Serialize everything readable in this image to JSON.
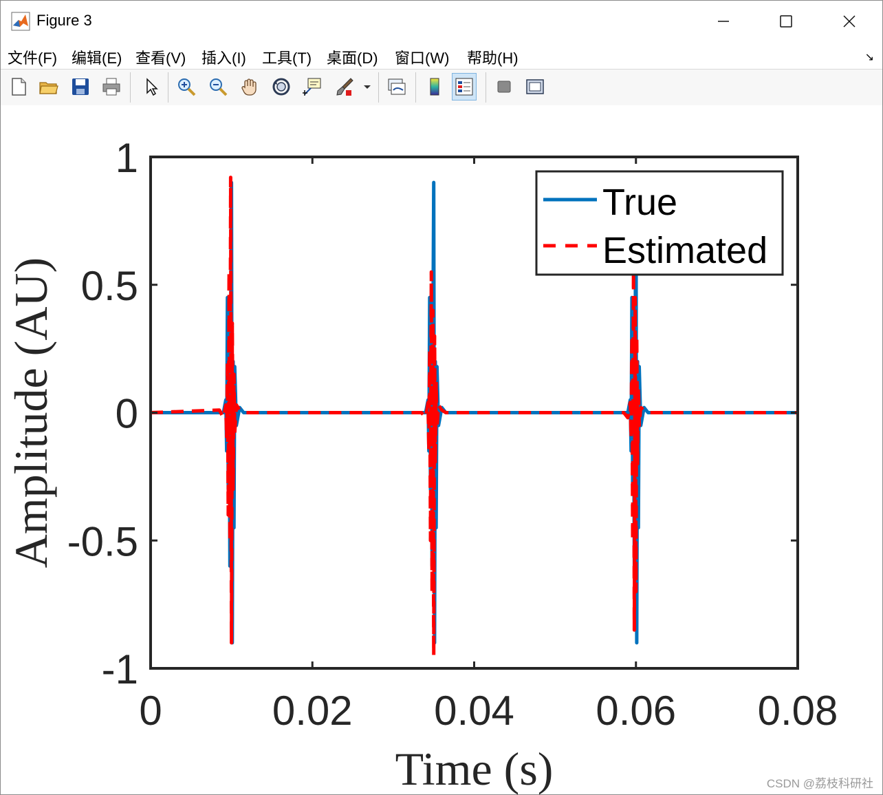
{
  "window": {
    "title": "Figure 3",
    "controls": [
      "minimize",
      "maximize",
      "close"
    ]
  },
  "menu": {
    "items": [
      "文件(F)",
      "编辑(E)",
      "查看(V)",
      "插入(I)",
      "工具(T)",
      "桌面(D)",
      "窗口(W)",
      "帮助(H)"
    ]
  },
  "toolbar": {
    "buttons": [
      {
        "name": "new-figure-icon"
      },
      {
        "name": "open-file-icon"
      },
      {
        "name": "save-icon"
      },
      {
        "name": "print-icon"
      },
      {
        "name": "pointer-icon"
      },
      {
        "name": "zoom-in-icon"
      },
      {
        "name": "zoom-out-icon"
      },
      {
        "name": "pan-hand-icon"
      },
      {
        "name": "rotate-3d-icon"
      },
      {
        "name": "data-cursor-icon"
      },
      {
        "name": "brush-icon"
      },
      {
        "name": "link-plot-icon"
      },
      {
        "name": "colorbar-icon"
      },
      {
        "name": "legend-icon",
        "active": true
      },
      {
        "name": "hide-plot-tools-icon"
      },
      {
        "name": "show-plot-tools-icon"
      }
    ]
  },
  "chart_data": {
    "type": "line",
    "title": "",
    "xlabel": "Time (s)",
    "ylabel": "Amplitude (AU)",
    "xlim": [
      0,
      0.08
    ],
    "ylim": [
      -1,
      1
    ],
    "xticks": [
      "0",
      "0.02",
      "0.04",
      "0.06",
      "0.08"
    ],
    "xtick_values": [
      0,
      0.02,
      0.04,
      0.06,
      0.08
    ],
    "yticks": [
      "1",
      "0.5",
      "0",
      "-0.5",
      "-1"
    ],
    "ytick_values": [
      1,
      0.5,
      0,
      -0.5,
      -1
    ],
    "grid": false,
    "legend_position": "top-right",
    "series": [
      {
        "name": "True",
        "color": "#0072BD",
        "style": "solid",
        "x": [
          0,
          0.009,
          0.0093,
          0.0094,
          0.0095,
          0.0096,
          0.0097,
          0.0098,
          0.0099,
          0.01,
          0.0101,
          0.0102,
          0.0103,
          0.0104,
          0.0106,
          0.011,
          0.0115,
          0.034,
          0.0343,
          0.0344,
          0.0345,
          0.0346,
          0.0347,
          0.0348,
          0.0349,
          0.035,
          0.0351,
          0.0352,
          0.0353,
          0.0354,
          0.0356,
          0.036,
          0.0365,
          0.059,
          0.0593,
          0.0594,
          0.0595,
          0.0596,
          0.0597,
          0.0598,
          0.0599,
          0.06,
          0.0601,
          0.0602,
          0.0603,
          0.0604,
          0.0606,
          0.061,
          0.0615,
          0.08
        ],
        "y": [
          0,
          0,
          0.05,
          -0.15,
          0.45,
          -0.3,
          0.2,
          -0.6,
          0.3,
          0.9,
          -0.9,
          0.2,
          -0.45,
          0.18,
          -0.05,
          0.02,
          0,
          0,
          0.05,
          -0.15,
          0.45,
          -0.3,
          0.2,
          -0.6,
          0.3,
          0.9,
          -0.9,
          0.2,
          -0.45,
          0.18,
          -0.05,
          0.02,
          0,
          0,
          0.05,
          -0.15,
          0.45,
          -0.3,
          0.2,
          -0.6,
          0.3,
          0.9,
          -0.9,
          0.2,
          -0.45,
          0.18,
          -0.05,
          0.02,
          0,
          0
        ]
      },
      {
        "name": "Estimated",
        "color": "#FF0000",
        "style": "dashed",
        "x": [
          0,
          0.0085,
          0.009,
          0.0093,
          0.0094,
          0.0095,
          0.0096,
          0.0097,
          0.0098,
          0.0099,
          0.01,
          0.0101,
          0.0102,
          0.0103,
          0.0104,
          0.0106,
          0.011,
          0.0115,
          0.0335,
          0.034,
          0.0343,
          0.0344,
          0.0345,
          0.0346,
          0.0347,
          0.0348,
          0.0349,
          0.035,
          0.0351,
          0.0352,
          0.0353,
          0.0354,
          0.0356,
          0.036,
          0.0365,
          0.0585,
          0.059,
          0.0593,
          0.0594,
          0.0595,
          0.0596,
          0.0597,
          0.0598,
          0.0599,
          0.06,
          0.0601,
          0.0602,
          0.0603,
          0.0604,
          0.0606,
          0.061,
          0.0615,
          0.08
        ],
        "y": [
          0,
          0.01,
          -0.02,
          0.03,
          -0.1,
          0.2,
          -0.4,
          0.55,
          -0.5,
          0.92,
          -0.9,
          0.35,
          -0.3,
          0.15,
          -0.08,
          0.03,
          0.01,
          0,
          0,
          -0.02,
          0.04,
          -0.15,
          0.25,
          -0.5,
          0.55,
          -0.7,
          0.4,
          -0.95,
          0.3,
          -0.2,
          0.12,
          -0.06,
          0.03,
          0.01,
          0,
          0,
          -0.02,
          0.04,
          -0.1,
          0.3,
          -0.5,
          0.55,
          -0.85,
          0.45,
          -0.7,
          0.3,
          -0.2,
          0.1,
          -0.05,
          0.02,
          0.01,
          0,
          0
        ]
      }
    ]
  },
  "watermark": "CSDN @荔枝科研社"
}
